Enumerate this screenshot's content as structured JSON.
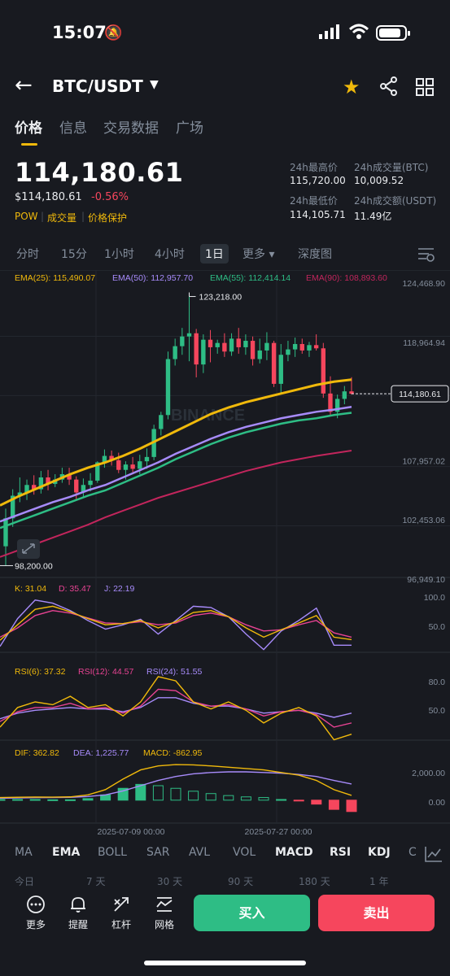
{
  "status_bar": {
    "time": "15:07"
  },
  "header": {
    "pair": "BTC/USDT"
  },
  "tabs": [
    "价格",
    "信息",
    "交易数据",
    "广场"
  ],
  "price": {
    "last": "114,180.61",
    "usd": "$114,180.61",
    "change": "-0.56%",
    "tags": [
      "POW",
      "成交量",
      "价格保护"
    ]
  },
  "stats": {
    "high_label": "24h最高价",
    "high": "115,720.00",
    "vol_btc_label": "24h成交量(BTC)",
    "vol_btc": "10,009.52",
    "low_label": "24h最低价",
    "low": "114,105.71",
    "vol_usdt_label": "24h成交额(USDT)",
    "vol_usdt": "11.49亿"
  },
  "intervals": [
    "分时",
    "15分",
    "1小时",
    "4小时",
    "1日",
    "更多 ▾",
    "深度图"
  ],
  "active_interval": "1日",
  "ema_legend": [
    {
      "label": "EMA(25): 115,490.07",
      "color": "#f0b90b"
    },
    {
      "label": "EMA(50): 112,957.70",
      "color": "#a78bfa"
    },
    {
      "label": "EMA(55): 112,414.14",
      "color": "#2ebd85"
    },
    {
      "label": "EMA(90): 108,893.60",
      "color": "#c2255c"
    }
  ],
  "price_axis": [
    "124,468.90",
    "118,964.94",
    "107,957.02",
    "102,453.06",
    "96,949.10"
  ],
  "current_price_tag": "114,180.61",
  "high_marker": "123,218.00",
  "low_marker": "98,200.00",
  "watermark": "BINANCE",
  "kdj": {
    "legend": [
      {
        "label": "K: 31.04",
        "color": "#f0b90b"
      },
      {
        "label": "D: 35.47",
        "color": "#e84393"
      },
      {
        "label": "J: 22.19",
        "color": "#a78bfa"
      }
    ],
    "axis": [
      "100.0",
      "50.0"
    ]
  },
  "rsi": {
    "legend": [
      {
        "label": "RSI(6): 37.32",
        "color": "#f0b90b"
      },
      {
        "label": "RSI(12): 44.57",
        "color": "#e84393"
      },
      {
        "label": "RSI(24): 51.55",
        "color": "#a78bfa"
      }
    ],
    "axis": [
      "80.0",
      "50.0"
    ]
  },
  "macd": {
    "legend": [
      {
        "label": "DIF: 362.82",
        "color": "#f0b90b"
      },
      {
        "label": "DEA: 1,225.77",
        "color": "#a78bfa"
      },
      {
        "label": "MACD: -862.95",
        "color": "#f0b90b"
      }
    ],
    "axis": [
      "2,000.00",
      "0.00"
    ]
  },
  "x_dates": [
    "2025-07-09 00:00",
    "2025-07-27 00:00"
  ],
  "indicator_tabs": [
    "MA",
    "EMA",
    "BOLL",
    "SAR",
    "AVL",
    "VOL",
    "MACD",
    "RSI",
    "KDJ",
    "C"
  ],
  "periods": [
    "今日",
    "7 天",
    "30 天",
    "90 天",
    "180 天",
    "1 年"
  ],
  "bottom_actions": [
    "更多",
    "提醒",
    "杠杆",
    "网格"
  ],
  "buy_label": "买入",
  "sell_label": "卖出",
  "colors": {
    "up": "#2ebd85",
    "down": "#f6465d",
    "accent": "#f0b90b",
    "bg": "#181a20"
  },
  "icons": [
    "back-icon",
    "star-icon",
    "share-icon",
    "grid-icon",
    "chart-settings-icon",
    "indicator-chart-icon",
    "more-icon",
    "bell-icon",
    "leverage-icon",
    "grid-trading-icon",
    "expand-icon"
  ],
  "chart_data": {
    "type": "candlestick",
    "ylim": [
      96949.1,
      124468.9
    ],
    "candles": [
      [
        100000,
        103500,
        98200,
        102600
      ],
      [
        102600,
        105300,
        101800,
        104700
      ],
      [
        104700,
        106400,
        104100,
        105000
      ],
      [
        105000,
        106200,
        104300,
        105700
      ],
      [
        105700,
        106600,
        104800,
        105300
      ],
      [
        105300,
        107000,
        104900,
        106400
      ],
      [
        106400,
        107100,
        105200,
        105800
      ],
      [
        105800,
        106700,
        105500,
        106200
      ],
      [
        106200,
        107300,
        105900,
        106700
      ],
      [
        106700,
        107300,
        105700,
        106200
      ],
      [
        106200,
        106500,
        104400,
        105000
      ],
      [
        105000,
        106300,
        104600,
        105700
      ],
      [
        105700,
        106800,
        105100,
        106100
      ],
      [
        106100,
        107900,
        105900,
        107800
      ],
      [
        107800,
        109000,
        107300,
        108400
      ],
      [
        108400,
        108900,
        107500,
        108000
      ],
      [
        108000,
        108700,
        106800,
        107100
      ],
      [
        107100,
        107900,
        106200,
        107600
      ],
      [
        107600,
        108300,
        106900,
        107200
      ],
      [
        107200,
        108500,
        106700,
        107900
      ],
      [
        107900,
        109100,
        107200,
        108300
      ],
      [
        108300,
        111300,
        108000,
        110900
      ],
      [
        110900,
        112500,
        110300,
        112200
      ],
      [
        112200,
        118100,
        111800,
        117400
      ],
      [
        117400,
        119300,
        116800,
        118600
      ],
      [
        118600,
        120300,
        117800,
        119500
      ],
      [
        119500,
        123218,
        117200,
        119800
      ],
      [
        119800,
        120200,
        115700,
        116900
      ],
      [
        116900,
        119700,
        116100,
        119200
      ],
      [
        119200,
        120100,
        117100,
        118500
      ],
      [
        118500,
        119200,
        117900,
        118900
      ],
      [
        118900,
        119800,
        117600,
        118100
      ],
      [
        118100,
        119800,
        117700,
        119300
      ],
      [
        119300,
        120300,
        117900,
        118500
      ],
      [
        118500,
        119700,
        117800,
        119100
      ],
      [
        119100,
        119500,
        116800,
        117400
      ],
      [
        117400,
        119300,
        117000,
        118200
      ],
      [
        118200,
        119900,
        117300,
        118900
      ],
      [
        118900,
        119100,
        114800,
        115100
      ],
      [
        115100,
        118800,
        114300,
        117800
      ],
      [
        117800,
        119100,
        117200,
        118300
      ],
      [
        118300,
        119400,
        117600,
        118800
      ],
      [
        118800,
        119300,
        117900,
        118200
      ],
      [
        118200,
        119000,
        117600,
        118700
      ],
      [
        118700,
        119700,
        118200,
        118400
      ],
      [
        118400,
        118900,
        113800,
        114200
      ],
      [
        114200,
        115800,
        112100,
        112500
      ],
      [
        112500,
        114100,
        111900,
        113700
      ],
      [
        113700,
        114900,
        113200,
        114400
      ],
      [
        114400,
        115720,
        114105,
        114180
      ]
    ],
    "ema25": [
      103800,
      104600,
      105300,
      106000,
      106700,
      107300,
      107800,
      108400,
      109100,
      109900,
      110700,
      111500,
      112300,
      112900,
      113400,
      113800,
      114200,
      114600,
      115000,
      115300,
      115490
    ],
    "ema50": [
      102300,
      102900,
      103500,
      104100,
      104600,
      105200,
      105700,
      106400,
      107100,
      107800,
      108600,
      109300,
      110000,
      110600,
      111100,
      111500,
      111900,
      112200,
      112500,
      112700,
      112958
    ],
    "ema55": [
      101700,
      102300,
      102900,
      103500,
      104100,
      104700,
      105200,
      105900,
      106600,
      107300,
      108100,
      108800,
      109500,
      110100,
      110600,
      111000,
      111400,
      111700,
      111900,
      112200,
      112414
    ],
    "ema90": [
      99000,
      99600,
      100200,
      100800,
      101400,
      102000,
      102700,
      103300,
      103900,
      104500,
      105000,
      105500,
      106000,
      106500,
      107000,
      107400,
      107800,
      108100,
      108400,
      108650,
      108894
    ],
    "kdj_k": [
      30,
      55,
      80,
      85,
      76,
      65,
      55,
      57,
      62,
      50,
      60,
      75,
      78,
      68,
      50,
      35,
      47,
      58,
      70,
      35,
      31
    ],
    "kdj_d": [
      35,
      50,
      70,
      78,
      74,
      66,
      58,
      57,
      60,
      55,
      58,
      70,
      74,
      68,
      55,
      45,
      47,
      55,
      62,
      42,
      35
    ],
    "kdj_j": [
      20,
      65,
      95,
      90,
      78,
      62,
      48,
      55,
      64,
      40,
      62,
      85,
      83,
      68,
      40,
      15,
      45,
      62,
      82,
      22,
      22
    ],
    "rsi6": [
      42,
      56,
      60,
      58,
      64,
      56,
      58,
      50,
      60,
      78,
      75,
      60,
      55,
      60,
      54,
      45,
      52,
      56,
      50,
      33,
      37
    ],
    "rsi12": [
      46,
      53,
      56,
      56,
      59,
      55,
      56,
      52,
      57,
      69,
      68,
      60,
      57,
      58,
      55,
      50,
      53,
      54,
      51,
      42,
      45
    ],
    "rsi24": [
      48,
      52,
      54,
      55,
      56,
      55,
      55,
      53,
      56,
      63,
      63,
      59,
      57,
      57,
      55,
      52,
      53,
      54,
      52,
      49,
      52
    ],
    "macd_dif": [
      200,
      220,
      240,
      230,
      250,
      400,
      800,
      1600,
      2300,
      2600,
      2700,
      2680,
      2600,
      2500,
      2400,
      2300,
      2100,
      1900,
      1500,
      800,
      363
    ],
    "macd_dea": [
      150,
      170,
      190,
      200,
      220,
      280,
      400,
      700,
      1100,
      1500,
      1800,
      2000,
      2100,
      2150,
      2150,
      2100,
      2050,
      1950,
      1800,
      1500,
      1226
    ],
    "macd_hist": [
      50,
      50,
      50,
      30,
      30,
      120,
      400,
      900,
      1200,
      1100,
      900,
      680,
      500,
      350,
      250,
      200,
      50,
      -50,
      -300,
      -700,
      -863
    ]
  }
}
